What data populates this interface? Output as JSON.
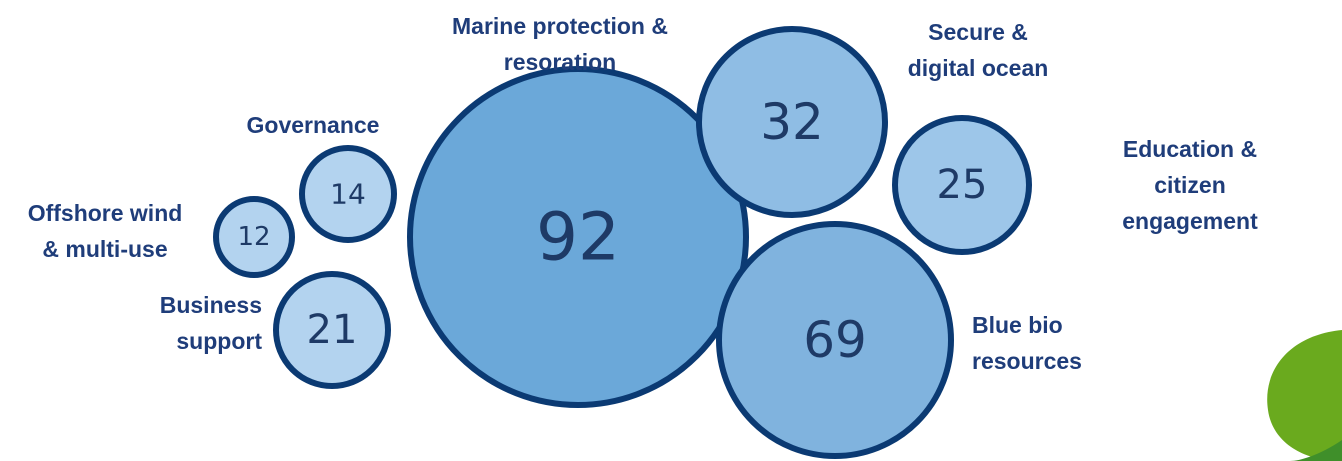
{
  "chart_data": {
    "type": "packed-bubble",
    "categories": [
      "Marine protection &\nresoration",
      "Blue bio\nresources",
      "Secure &\ndigital ocean",
      "Education &\ncitizen engagement",
      "Business\nsupport",
      "Governance",
      "Offshore wind\n& multi-use"
    ],
    "values": [
      92,
      69,
      32,
      25,
      21,
      14,
      12
    ],
    "colors": [
      "#6ba8d9",
      "#80b3de",
      "#8fbde4",
      "#9dc6e9",
      "#b3d3ef",
      "#b3d3ef",
      "#b3d3ef"
    ],
    "edge_color": "#0b3a73"
  }
}
